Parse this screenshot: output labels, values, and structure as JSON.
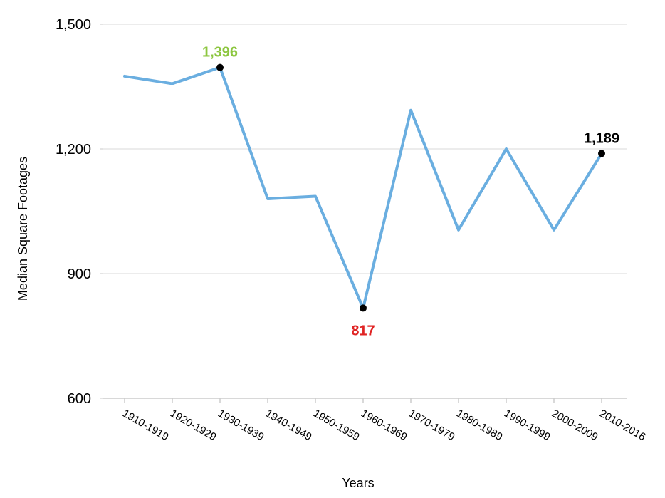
{
  "chart_data": {
    "type": "line",
    "title": "",
    "xlabel": "Years",
    "ylabel": "Median Square Footages",
    "categories": [
      "1910-1919",
      "1920-1929",
      "1930-1939",
      "1940-1949",
      "1950-1959",
      "1960-1969",
      "1970-1979",
      "1980-1989",
      "1990-1999",
      "2000-2009",
      "2010-2016"
    ],
    "series": [
      {
        "values": [
          1375,
          1357,
          1396,
          1080,
          1086,
          817,
          1293,
          1005,
          1200,
          1005,
          1189
        ]
      }
    ],
    "ylim": [
      600,
      1500
    ],
    "yticks": [
      600,
      900,
      1200,
      1500
    ],
    "ytick_labels": [
      "600",
      "900",
      "1,200",
      "1,500"
    ],
    "grid": "horizontal",
    "legend": "none",
    "line_color": "#6aaee0",
    "annotations": [
      {
        "index": 2,
        "label": "1,396",
        "color": "#8cc63f",
        "placement": "above"
      },
      {
        "index": 5,
        "label": "817",
        "color": "#e02424",
        "placement": "below"
      },
      {
        "index": 10,
        "label": "1,189",
        "color": "#000000",
        "placement": "above"
      }
    ]
  }
}
